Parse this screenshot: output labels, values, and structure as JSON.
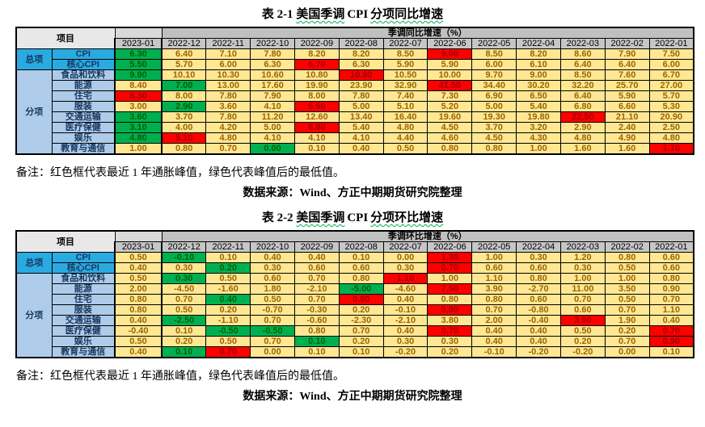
{
  "colors": {
    "peak-red": "#FF0000",
    "red-text": "#9C0006",
    "trough-green": "#00B050",
    "green-text": "#006100",
    "cell-yellow": "#FFE793",
    "yellow-text": "#9C6500",
    "blue-bright": "#29ABE2",
    "blue-light": "#AECBE9",
    "header-gray": "#C6C6C6",
    "band-gray": "#C0C0C0",
    "squiggle-green": "#00B050"
  },
  "tables": [
    {
      "title": {
        "prefix": "表 2-1",
        "underlined1": "美国季调",
        "latin": "CPI",
        "underlined2": "分项同比增速"
      },
      "corner_label": "项目",
      "group_label": "季调同比增速（%）",
      "columns": [
        "2023-01",
        "2022-12",
        "2022-11",
        "2022-10",
        "2022-09",
        "2022-08",
        "2022-07",
        "2022-06",
        "2022-05",
        "2022-04",
        "2022-03",
        "2022-02",
        "2022-01"
      ],
      "groups": [
        {
          "label": "总项",
          "start": 0,
          "span": 2
        },
        {
          "label": "分项",
          "start": 2,
          "span": 8
        }
      ],
      "rows": [
        {
          "label": "CPI",
          "values": [
            "6.30",
            "6.40",
            "7.10",
            "7.80",
            "8.20",
            "8.20",
            "8.50",
            "9.00",
            "8.50",
            "8.20",
            "8.60",
            "7.90",
            "7.50"
          ],
          "green": [
            0
          ],
          "red": [
            7
          ]
        },
        {
          "label": "核心CPI",
          "values": [
            "5.50",
            "5.70",
            "6.00",
            "6.30",
            "6.70",
            "6.30",
            "5.90",
            "5.90",
            "6.00",
            "6.10",
            "6.40",
            "6.40",
            "6.00"
          ],
          "green": [
            0
          ],
          "red": [
            4
          ]
        },
        {
          "label": "食品和饮料",
          "values": [
            "9.90",
            "10.10",
            "10.30",
            "10.60",
            "10.80",
            "10.90",
            "10.50",
            "10.00",
            "9.70",
            "9.00",
            "8.50",
            "7.60",
            "6.70"
          ],
          "green": [
            0
          ],
          "red": [
            5
          ]
        },
        {
          "label": "能源",
          "values": [
            "8.40",
            "7.00",
            "13.00",
            "17.60",
            "19.90",
            "23.90",
            "32.90",
            "41.50",
            "34.40",
            "30.20",
            "32.20",
            "25.70",
            "27.00"
          ],
          "green": [
            1
          ],
          "red": [
            7
          ]
        },
        {
          "label": "住宅",
          "values": [
            "8.30",
            "8.00",
            "7.80",
            "7.90",
            "8.00",
            "7.80",
            "7.40",
            "7.30",
            "6.90",
            "6.50",
            "6.40",
            "5.90",
            "5.70"
          ],
          "green": [],
          "red": [
            0
          ]
        },
        {
          "label": "服装",
          "values": [
            "3.00",
            "2.90",
            "3.60",
            "4.10",
            "5.50",
            "5.00",
            "5.10",
            "5.20",
            "5.00",
            "5.40",
            "6.80",
            "6.60",
            "5.30"
          ],
          "green": [
            1
          ],
          "red": [
            4
          ]
        },
        {
          "label": "交通运输",
          "values": [
            "3.60",
            "3.70",
            "7.80",
            "11.20",
            "12.60",
            "13.40",
            "16.40",
            "19.60",
            "19.30",
            "19.80",
            "22.50",
            "21.10",
            "20.90"
          ],
          "green": [
            0
          ],
          "red": [
            10
          ]
        },
        {
          "label": "医疗保健",
          "values": [
            "3.10",
            "4.00",
            "4.20",
            "5.00",
            "6.00",
            "5.40",
            "4.80",
            "4.50",
            "3.70",
            "3.20",
            "2.90",
            "2.40",
            "2.50"
          ],
          "green": [
            0
          ],
          "red": [
            4
          ]
        },
        {
          "label": "娱乐",
          "values": [
            "4.80",
            "5.10",
            "4.80",
            "4.10",
            "4.10",
            "4.10",
            "4.40",
            "4.60",
            "4.50",
            "4.30",
            "4.80",
            "4.90",
            "4.80"
          ],
          "green": [
            0
          ],
          "red": [
            1
          ]
        },
        {
          "label": "教育与通信",
          "values": [
            "1.00",
            "0.80",
            "0.70",
            "0.00",
            "0.10",
            "0.40",
            "0.50",
            "0.80",
            "0.80",
            "1.00",
            "1.60",
            "1.60",
            "1.70"
          ],
          "green": [
            3
          ],
          "red": [
            12
          ]
        }
      ],
      "note": "备注：红色框代表最近 1 年通胀峰值，绿色代表峰值后的最低值。",
      "source": "数据来源：Wind、方正中期期货研究院整理"
    },
    {
      "title": {
        "prefix": "表 2-2",
        "underlined1": "美国季调",
        "latin": "CPI",
        "underlined2": "分项环比增速"
      },
      "corner_label": "项目",
      "group_label": "季调环比增速（%）",
      "columns": [
        "2023-01",
        "2022-12",
        "2022-11",
        "2022-10",
        "2022-09",
        "2022-08",
        "2022-07",
        "2022-06",
        "2022-05",
        "2022-04",
        "2022-03",
        "2022-02",
        "2022-01"
      ],
      "groups": [
        {
          "label": "总项",
          "start": 0,
          "span": 2
        },
        {
          "label": "分项",
          "start": 2,
          "span": 8
        }
      ],
      "rows": [
        {
          "label": "CPI",
          "values": [
            "0.50",
            "-0.10",
            "0.10",
            "0.40",
            "0.40",
            "0.10",
            "0.00",
            "1.30",
            "1.00",
            "0.30",
            "1.20",
            "0.80",
            "0.60"
          ],
          "green": [
            1
          ],
          "red": [
            7
          ]
        },
        {
          "label": "核心CPI",
          "values": [
            "0.40",
            "0.30",
            "0.20",
            "0.30",
            "0.60",
            "0.60",
            "0.30",
            "0.70",
            "0.60",
            "0.60",
            "0.30",
            "0.50",
            "0.60"
          ],
          "green": [
            2
          ],
          "red": [
            7
          ]
        },
        {
          "label": "食品和饮料",
          "values": [
            "0.50",
            "0.30",
            "0.50",
            "0.60",
            "0.70",
            "0.80",
            "1.10",
            "1.00",
            "1.10",
            "0.80",
            "1.00",
            "1.00",
            "0.80"
          ],
          "green": [
            1
          ],
          "red": [
            6
          ]
        },
        {
          "label": "能源",
          "values": [
            "2.00",
            "-4.50",
            "-1.60",
            "1.80",
            "-2.10",
            "-5.00",
            "-4.60",
            "7.50",
            "3.90",
            "-2.70",
            "11.00",
            "3.50",
            "0.90"
          ],
          "green": [
            5
          ],
          "red": [
            7
          ]
        },
        {
          "label": "住宅",
          "values": [
            "0.80",
            "0.70",
            "0.40",
            "0.50",
            "0.70",
            "0.80",
            "0.40",
            "0.80",
            "0.80",
            "0.60",
            "0.70",
            "0.50",
            "0.70"
          ],
          "green": [
            2
          ],
          "red": [
            5
          ]
        },
        {
          "label": "服装",
          "values": [
            "0.80",
            "0.50",
            "0.20",
            "-0.70",
            "-0.30",
            "0.20",
            "-0.10",
            "0.80",
            "0.70",
            "-0.80",
            "0.60",
            "0.70",
            "1.10"
          ],
          "green": [],
          "red": [
            7
          ]
        },
        {
          "label": "交通运输",
          "values": [
            "0.40",
            "-2.50",
            "-1.10",
            "0.70",
            "-0.60",
            "-2.30",
            "-2.10",
            "3.80",
            "2.00",
            "-0.40",
            "3.90",
            "1.90",
            "0.40"
          ],
          "green": [
            1
          ],
          "red": [
            10
          ]
        },
        {
          "label": "医疗保健",
          "values": [
            "-0.40",
            "0.10",
            "-0.50",
            "-0.50",
            "0.80",
            "0.70",
            "0.40",
            "0.70",
            "0.40",
            "0.40",
            "0.50",
            "0.20",
            "0.70"
          ],
          "green": [
            2,
            3
          ],
          "red": [
            7,
            12
          ]
        },
        {
          "label": "娱乐",
          "values": [
            "0.50",
            "0.20",
            "0.50",
            "0.70",
            "0.10",
            "0.20",
            "0.30",
            "0.30",
            "0.40",
            "0.40",
            "0.20",
            "0.70",
            "0.90"
          ],
          "green": [
            4
          ],
          "red": [
            12
          ]
        },
        {
          "label": "教育与通信",
          "values": [
            "0.40",
            "0.10",
            "0.70",
            "0.00",
            "0.10",
            "0.10",
            "-0.20",
            "0.20",
            "-0.10",
            "-0.20",
            "-0.20",
            "0.00",
            "0.10"
          ],
          "green": [
            1
          ],
          "red": [
            2
          ]
        }
      ],
      "note": "备注：红色框代表最近 1 年通胀峰值，绿色代表峰值后的最低值。",
      "source": "数据来源：Wind、方正中期期货研究院整理"
    }
  ]
}
